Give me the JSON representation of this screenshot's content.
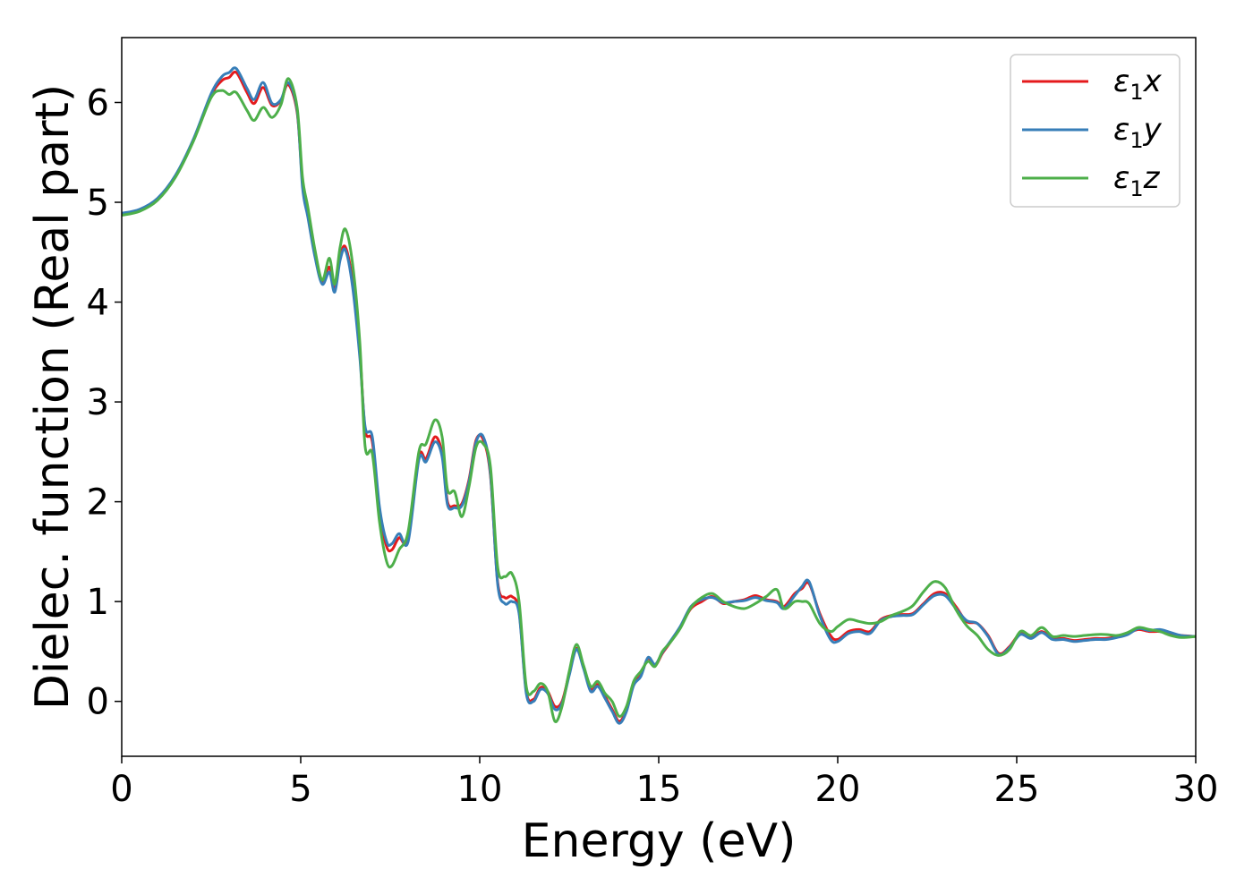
{
  "chart_data": {
    "type": "line",
    "xlabel": "Energy (eV)",
    "ylabel": "Dielec. function (Real part)",
    "xlim": [
      0,
      30
    ],
    "ylim": [
      -0.55,
      6.65
    ],
    "xticks": [
      0,
      5,
      10,
      15,
      20,
      25,
      30
    ],
    "yticks": [
      0,
      1,
      2,
      3,
      4,
      5,
      6
    ],
    "grid": false,
    "legend_position": "top-right",
    "series": [
      {
        "name": "ε1x",
        "legend": {
          "base": "ε",
          "sub": "1",
          "suffix": "x"
        },
        "color": "#e41a1c",
        "x": [
          0,
          0.5,
          1,
          1.5,
          2,
          2.5,
          2.8,
          3.0,
          3.2,
          3.5,
          3.7,
          3.95,
          4.2,
          4.45,
          4.65,
          4.9,
          5.05,
          5.2,
          5.4,
          5.6,
          5.8,
          5.95,
          6.1,
          6.25,
          6.45,
          6.65,
          6.8,
          7.0,
          7.2,
          7.4,
          7.55,
          7.75,
          8.0,
          8.3,
          8.5,
          8.75,
          8.95,
          9.1,
          9.3,
          9.5,
          9.7,
          9.9,
          10.1,
          10.3,
          10.5,
          10.7,
          10.9,
          11.1,
          11.3,
          11.5,
          11.7,
          11.9,
          12.1,
          12.3,
          12.5,
          12.7,
          12.9,
          13.1,
          13.3,
          13.5,
          13.7,
          13.9,
          14.1,
          14.3,
          14.5,
          14.7,
          14.9,
          15.1,
          15.3,
          15.6,
          15.9,
          16.2,
          16.5,
          16.8,
          17.1,
          17.4,
          17.7,
          18.0,
          18.3,
          18.5,
          18.8,
          19.0,
          19.2,
          19.5,
          19.8,
          20.0,
          20.3,
          20.6,
          20.9,
          21.2,
          21.5,
          21.8,
          22.1,
          22.4,
          22.7,
          23.0,
          23.3,
          23.6,
          23.9,
          24.2,
          24.5,
          24.8,
          25.1,
          25.4,
          25.7,
          26.0,
          26.3,
          26.6,
          26.9,
          27.2,
          27.5,
          27.8,
          28.1,
          28.4,
          28.7,
          29.0,
          29.3,
          29.6,
          30.0
        ],
        "y": [
          4.88,
          4.92,
          5.03,
          5.26,
          5.62,
          6.07,
          6.22,
          6.25,
          6.3,
          6.1,
          5.99,
          6.15,
          5.97,
          6.02,
          6.18,
          5.9,
          5.2,
          4.9,
          4.5,
          4.2,
          4.35,
          4.12,
          4.45,
          4.55,
          4.2,
          3.5,
          2.72,
          2.6,
          1.9,
          1.55,
          1.52,
          1.64,
          1.62,
          2.45,
          2.43,
          2.65,
          2.48,
          2.0,
          1.96,
          1.98,
          2.22,
          2.62,
          2.62,
          2.26,
          1.2,
          1.04,
          1.05,
          0.9,
          0.1,
          0.02,
          0.14,
          0.1,
          -0.05,
          0.0,
          0.28,
          0.53,
          0.35,
          0.12,
          0.17,
          0.05,
          -0.08,
          -0.2,
          -0.08,
          0.18,
          0.26,
          0.43,
          0.36,
          0.48,
          0.58,
          0.74,
          0.93,
          1.0,
          1.05,
          0.98,
          1.0,
          1.02,
          1.06,
          1.02,
          1.0,
          0.95,
          1.08,
          1.13,
          1.18,
          0.88,
          0.66,
          0.62,
          0.7,
          0.72,
          0.7,
          0.82,
          0.86,
          0.87,
          0.88,
          0.98,
          1.08,
          1.08,
          0.95,
          0.8,
          0.78,
          0.66,
          0.48,
          0.55,
          0.68,
          0.64,
          0.7,
          0.63,
          0.63,
          0.61,
          0.62,
          0.63,
          0.63,
          0.65,
          0.68,
          0.72,
          0.7,
          0.7,
          0.68,
          0.66,
          0.65
        ]
      },
      {
        "name": "ε1y",
        "legend": {
          "base": "ε",
          "sub": "1",
          "suffix": "y"
        },
        "color": "#377eb8",
        "x": [
          0,
          0.5,
          1,
          1.5,
          2,
          2.5,
          2.8,
          3.0,
          3.2,
          3.5,
          3.7,
          3.95,
          4.2,
          4.45,
          4.65,
          4.9,
          5.05,
          5.2,
          5.4,
          5.6,
          5.8,
          5.95,
          6.1,
          6.25,
          6.45,
          6.65,
          6.8,
          7.0,
          7.2,
          7.4,
          7.55,
          7.75,
          8.0,
          8.3,
          8.5,
          8.75,
          8.95,
          9.1,
          9.3,
          9.5,
          9.7,
          9.9,
          10.1,
          10.3,
          10.5,
          10.7,
          10.9,
          11.1,
          11.3,
          11.5,
          11.7,
          11.9,
          12.1,
          12.3,
          12.5,
          12.7,
          12.9,
          13.1,
          13.3,
          13.5,
          13.7,
          13.9,
          14.1,
          14.3,
          14.5,
          14.7,
          14.9,
          15.1,
          15.3,
          15.6,
          15.9,
          16.2,
          16.5,
          16.8,
          17.1,
          17.4,
          17.7,
          18.0,
          18.3,
          18.5,
          18.8,
          19.0,
          19.2,
          19.5,
          19.8,
          20.0,
          20.3,
          20.6,
          20.9,
          21.2,
          21.5,
          21.8,
          22.1,
          22.4,
          22.7,
          23.0,
          23.3,
          23.6,
          23.9,
          24.2,
          24.5,
          24.8,
          25.1,
          25.4,
          25.7,
          26.0,
          26.3,
          26.6,
          26.9,
          27.2,
          27.5,
          27.8,
          28.1,
          28.4,
          28.7,
          29.0,
          29.3,
          29.6,
          30.0
        ],
        "y": [
          4.89,
          4.93,
          5.04,
          5.27,
          5.63,
          6.09,
          6.26,
          6.3,
          6.34,
          6.14,
          6.03,
          6.2,
          5.99,
          6.03,
          6.2,
          5.92,
          5.15,
          4.85,
          4.45,
          4.18,
          4.3,
          4.1,
          4.42,
          4.52,
          4.15,
          3.45,
          2.75,
          2.65,
          1.95,
          1.6,
          1.58,
          1.68,
          1.6,
          2.42,
          2.4,
          2.6,
          2.45,
          1.97,
          1.94,
          1.96,
          2.2,
          2.6,
          2.65,
          2.28,
          1.18,
          0.98,
          1.0,
          0.88,
          0.08,
          0.0,
          0.12,
          0.08,
          -0.08,
          -0.02,
          0.26,
          0.52,
          0.33,
          0.1,
          0.15,
          0.03,
          -0.1,
          -0.22,
          -0.1,
          0.16,
          0.25,
          0.44,
          0.37,
          0.49,
          0.59,
          0.75,
          0.95,
          1.02,
          1.04,
          0.99,
          1.0,
          1.01,
          1.04,
          1.01,
          0.99,
          0.93,
          1.06,
          1.15,
          1.2,
          0.86,
          0.62,
          0.6,
          0.68,
          0.7,
          0.68,
          0.81,
          0.85,
          0.86,
          0.87,
          0.97,
          1.06,
          1.06,
          0.93,
          0.81,
          0.78,
          0.65,
          0.47,
          0.54,
          0.67,
          0.63,
          0.69,
          0.62,
          0.62,
          0.6,
          0.61,
          0.62,
          0.62,
          0.64,
          0.67,
          0.73,
          0.71,
          0.72,
          0.69,
          0.66,
          0.65
        ]
      },
      {
        "name": "ε1z",
        "legend": {
          "base": "ε",
          "sub": "1",
          "suffix": "z"
        },
        "color": "#4daf4a",
        "x": [
          0,
          0.5,
          1,
          1.5,
          2,
          2.5,
          2.8,
          3.0,
          3.2,
          3.5,
          3.7,
          3.95,
          4.2,
          4.45,
          4.65,
          4.9,
          5.05,
          5.2,
          5.4,
          5.6,
          5.8,
          5.95,
          6.1,
          6.25,
          6.45,
          6.65,
          6.8,
          7.0,
          7.2,
          7.4,
          7.55,
          7.75,
          8.0,
          8.3,
          8.5,
          8.75,
          8.95,
          9.1,
          9.3,
          9.5,
          9.7,
          9.9,
          10.1,
          10.3,
          10.5,
          10.7,
          10.9,
          11.1,
          11.3,
          11.5,
          11.7,
          11.9,
          12.1,
          12.3,
          12.5,
          12.7,
          12.9,
          13.1,
          13.3,
          13.5,
          13.7,
          13.9,
          14.1,
          14.3,
          14.5,
          14.7,
          14.9,
          15.1,
          15.3,
          15.6,
          15.9,
          16.2,
          16.5,
          16.8,
          17.1,
          17.4,
          17.7,
          18.0,
          18.3,
          18.5,
          18.8,
          19.0,
          19.2,
          19.5,
          19.8,
          20.0,
          20.3,
          20.6,
          20.9,
          21.2,
          21.5,
          21.8,
          22.1,
          22.4,
          22.7,
          23.0,
          23.3,
          23.6,
          23.9,
          24.2,
          24.5,
          24.8,
          25.1,
          25.4,
          25.7,
          26.0,
          26.3,
          26.6,
          26.9,
          27.2,
          27.5,
          27.8,
          28.1,
          28.4,
          28.7,
          29.0,
          29.3,
          29.6,
          30.0
        ],
        "y": [
          4.87,
          4.91,
          5.02,
          5.25,
          5.61,
          6.05,
          6.12,
          6.08,
          6.1,
          5.92,
          5.82,
          5.95,
          5.85,
          5.98,
          6.24,
          5.95,
          5.25,
          4.95,
          4.52,
          4.22,
          4.44,
          4.18,
          4.55,
          4.73,
          4.38,
          3.6,
          2.55,
          2.48,
          1.8,
          1.4,
          1.36,
          1.52,
          1.7,
          2.5,
          2.58,
          2.82,
          2.65,
          2.12,
          2.1,
          1.85,
          2.15,
          2.55,
          2.58,
          2.35,
          1.35,
          1.25,
          1.28,
          1.0,
          0.15,
          0.1,
          0.18,
          0.1,
          -0.2,
          -0.05,
          0.3,
          0.57,
          0.36,
          0.15,
          0.2,
          0.08,
          0.0,
          -0.15,
          -0.05,
          0.2,
          0.3,
          0.4,
          0.35,
          0.5,
          0.58,
          0.73,
          0.94,
          1.04,
          1.08,
          1.0,
          0.95,
          0.93,
          0.98,
          1.05,
          1.12,
          0.93,
          1.0,
          1.0,
          0.98,
          0.78,
          0.7,
          0.75,
          0.82,
          0.8,
          0.78,
          0.8,
          0.86,
          0.9,
          0.96,
          1.1,
          1.2,
          1.14,
          0.92,
          0.76,
          0.66,
          0.52,
          0.46,
          0.52,
          0.7,
          0.66,
          0.74,
          0.65,
          0.66,
          0.65,
          0.66,
          0.67,
          0.67,
          0.66,
          0.69,
          0.74,
          0.72,
          0.7,
          0.66,
          0.64,
          0.65
        ]
      }
    ]
  }
}
